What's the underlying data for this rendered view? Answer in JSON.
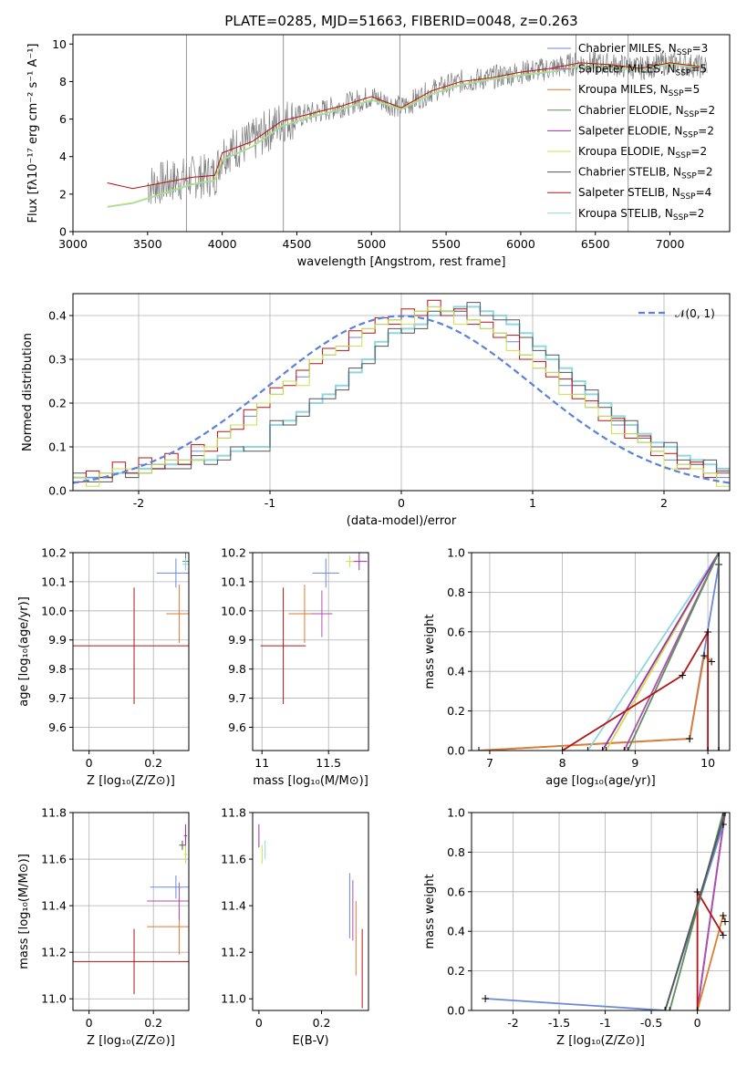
{
  "title": "PLATE=0285, MJD=51663, FIBERID=0048, z=0.263",
  "series": [
    {
      "name": "Chabrier MILES",
      "nssp": "3",
      "color": "#6a89d8"
    },
    {
      "name": "Salpeter MILES",
      "nssp": "5",
      "color": "#b04fb3"
    },
    {
      "name": "Kroupa MILES",
      "nssp": "5",
      "color": "#e07a2c"
    },
    {
      "name": "Chabrier ELODIE",
      "nssp": "2",
      "color": "#5e8f5e"
    },
    {
      "name": "Salpeter ELODIE",
      "nssp": "2",
      "color": "#9d2fae"
    },
    {
      "name": "Kroupa ELODIE",
      "nssp": "2",
      "color": "#cbe04a"
    },
    {
      "name": "Chabrier STELIB",
      "nssp": "2",
      "color": "#555555"
    },
    {
      "name": "Salpeter STELIB",
      "nssp": "4",
      "color": "#b31515"
    },
    {
      "name": "Kroupa STELIB",
      "nssp": "2",
      "color": "#8fd6e0"
    }
  ],
  "legend_suffix": "N",
  "legend_sub": "SSP",
  "chart_data": [
    {
      "id": "spectrum",
      "type": "line",
      "xlabel": "wavelength [Angstrom, rest frame]",
      "ylabel": "Flux [f",
      "ylabel_full": "Flux [fλ10⁻¹⁷ erg cm⁻² s⁻¹ A⁻¹]",
      "xlim": [
        3000,
        7400
      ],
      "ylim": [
        0,
        10.5
      ],
      "xticks": [
        3000,
        3500,
        4000,
        4500,
        5000,
        5500,
        6000,
        6500,
        7000
      ],
      "yticks": [
        0,
        2,
        4,
        6,
        8,
        10
      ],
      "legend_position": "top-right",
      "data_color": "#7f7f7f",
      "data_range": [
        3230,
        7250
      ],
      "model_x": [
        3230,
        3400,
        3600,
        3800,
        3950,
        4000,
        4200,
        4400,
        4600,
        4800,
        5000,
        5200,
        5400,
        5600,
        5800,
        6000,
        6200,
        6400,
        6600,
        6800,
        7000,
        7200
      ],
      "model_y": [
        2.6,
        2.3,
        2.6,
        2.9,
        3.0,
        4.2,
        4.8,
        5.9,
        6.3,
        6.7,
        7.2,
        6.6,
        7.5,
        8.0,
        8.2,
        8.5,
        8.7,
        9.0,
        8.9,
        8.7,
        9.0,
        8.8
      ],
      "model_low_y": [
        1.3,
        1.5,
        2.0,
        2.5,
        2.7,
        3.8,
        4.5,
        5.6,
        6.1,
        6.5,
        7.0,
        6.5,
        7.3,
        7.8,
        8.1,
        8.3,
        8.5,
        8.8,
        8.7,
        8.6,
        8.9,
        8.7
      ]
    },
    {
      "id": "residuals",
      "type": "area",
      "xlabel": "(data-model)/error",
      "ylabel": "Normed distribution",
      "xlim": [
        -2.5,
        2.5
      ],
      "ylim": [
        0,
        0.45
      ],
      "xticks": [
        -2,
        -1,
        0,
        1,
        2
      ],
      "yticks": [
        0.0,
        0.1,
        0.2,
        0.3,
        0.4
      ],
      "legend": "𝒩(0, 1)",
      "legend_position": "top-right",
      "gauss_color": "#5b82d6",
      "bin_width": 0.1,
      "bins_start": -2.5,
      "hist_a": [
        0.03,
        0.03,
        0.04,
        0.05,
        0.05,
        0.06,
        0.06,
        0.07,
        0.07,
        0.09,
        0.1,
        0.12,
        0.15,
        0.17,
        0.2,
        0.22,
        0.25,
        0.26,
        0.3,
        0.31,
        0.33,
        0.35,
        0.37,
        0.38,
        0.39,
        0.4,
        0.41,
        0.42,
        0.41,
        0.4,
        0.39,
        0.37,
        0.36,
        0.34,
        0.31,
        0.28,
        0.27,
        0.24,
        0.22,
        0.19,
        0.17,
        0.15,
        0.13,
        0.11,
        0.09,
        0.07,
        0.06,
        0.05,
        0.04,
        0.03
      ],
      "hist_b": [
        0.03,
        0.03,
        0.03,
        0.04,
        0.04,
        0.05,
        0.05,
        0.06,
        0.06,
        0.07,
        0.07,
        0.08,
        0.09,
        0.1,
        0.1,
        0.15,
        0.16,
        0.18,
        0.2,
        0.22,
        0.24,
        0.27,
        0.3,
        0.34,
        0.36,
        0.37,
        0.38,
        0.4,
        0.41,
        0.42,
        0.42,
        0.41,
        0.4,
        0.38,
        0.36,
        0.33,
        0.3,
        0.28,
        0.25,
        0.22,
        0.2,
        0.17,
        0.15,
        0.13,
        0.11,
        0.1,
        0.08,
        0.07,
        0.06,
        0.05
      ]
    },
    {
      "id": "age_vs_Z",
      "type": "scatter",
      "xlabel": "Z [log₁₀(Z/Z⊙)]",
      "ylabel": "age  [log₁₀(age/yr)]",
      "xlim": [
        -0.05,
        0.31
      ],
      "ylim": [
        9.52,
        10.2
      ],
      "xticks": [
        0.0,
        0.2
      ],
      "yticks": [
        9.6,
        9.7,
        9.8,
        9.9,
        10.0,
        10.1,
        10.2
      ]
    },
    {
      "id": "age_vs_mass",
      "type": "scatter",
      "xlabel": "mass [log₁₀(M/M⊙)]",
      "xlim": [
        10.93,
        11.8
      ],
      "ylim": [
        9.52,
        10.2
      ],
      "xticks": [
        11.0,
        11.5
      ],
      "yticks": [
        9.6,
        9.7,
        9.8,
        9.9,
        10.0,
        10.1,
        10.2
      ]
    },
    {
      "id": "weight_vs_age",
      "type": "line",
      "xlabel": "age  [log₁₀(age/yr)]",
      "ylabel": "mass weight",
      "xlim": [
        6.75,
        10.3
      ],
      "ylim": [
        0,
        1.0
      ],
      "xticks": [
        7,
        8,
        9,
        10
      ],
      "yticks": [
        0.0,
        0.2,
        0.4,
        0.6,
        0.8,
        1.0
      ]
    },
    {
      "id": "mass_vs_Z",
      "type": "scatter",
      "xlabel": "Z [log₁₀(Z/Z⊙)]",
      "ylabel": "mass [log₁₀(M/M⊙)]",
      "xlim": [
        -0.05,
        0.31
      ],
      "ylim": [
        10.95,
        11.8
      ],
      "xticks": [
        0.0,
        0.2
      ],
      "yticks": [
        11.0,
        11.2,
        11.4,
        11.6,
        11.8
      ]
    },
    {
      "id": "mass_vs_EBV",
      "type": "scatter",
      "xlabel": "E(B-V)",
      "xlim": [
        -0.02,
        0.35
      ],
      "ylim": [
        10.95,
        11.8
      ],
      "xticks": [
        0.0,
        0.2
      ],
      "yticks": [
        11.0,
        11.2,
        11.4,
        11.6,
        11.8
      ]
    },
    {
      "id": "weight_vs_Z",
      "type": "line",
      "xlabel": "Z [log₁₀(Z/Z⊙)]",
      "ylabel": "mass weight",
      "xlim": [
        -2.45,
        0.35
      ],
      "ylim": [
        0,
        1.0
      ],
      "xticks": [
        -2.0,
        -1.5,
        -1.0,
        -0.5,
        0.0
      ],
      "yticks": [
        0.0,
        0.2,
        0.4,
        0.6,
        0.8,
        1.0
      ]
    }
  ]
}
